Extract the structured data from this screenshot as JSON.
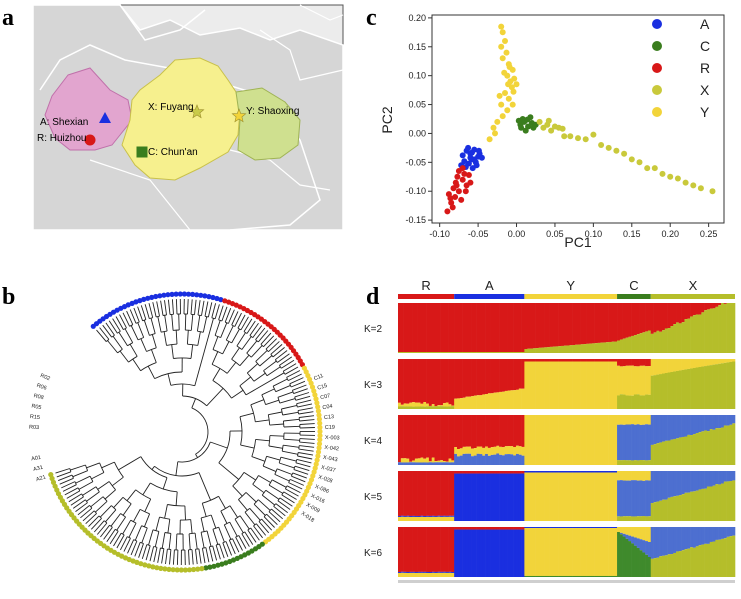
{
  "panels": {
    "a": {
      "letter": "a"
    },
    "b": {
      "letter": "b"
    },
    "c": {
      "letter": "c"
    },
    "d": {
      "letter": "d"
    }
  },
  "colors": {
    "A": "#1a2fe0",
    "C": "#3a7d1e",
    "R": "#d81818",
    "X": "#b5be2a",
    "Y": "#f2d43a",
    "K_blue": "#4d6fd0",
    "K_green": "#3f8a2c",
    "map_land": "#d8d8d8",
    "map_pink": "#e2a5cf",
    "map_yellow": "#f6f08e",
    "map_green": "#cfe08f"
  },
  "map": {
    "sites": [
      {
        "code": "A",
        "label": "A: Shexian",
        "marker": "triangle",
        "color": "#1a2fe0"
      },
      {
        "code": "R",
        "label": "R: Huizhou",
        "marker": "circle",
        "color": "#d81818"
      },
      {
        "code": "X",
        "label": "X: Fuyang",
        "marker": "star",
        "color": "#c9cc4a"
      },
      {
        "code": "Y",
        "label": "Y: Shaoxing",
        "marker": "star",
        "color": "#f2d43a"
      },
      {
        "code": "C",
        "label": "C: Chun'an",
        "marker": "square",
        "color": "#3a7d1e"
      }
    ]
  },
  "chart_data": [
    {
      "id": "pca",
      "type": "scatter",
      "xlabel": "PC1",
      "ylabel": "PC2",
      "xlim": [
        -0.11,
        0.27
      ],
      "ylim": [
        -0.155,
        0.205
      ],
      "xticks": [
        "-0.10",
        "-0.05",
        "0.00",
        "0.05",
        "0.10",
        "0.15",
        "0.20",
        "0.25"
      ],
      "xtick_values": [
        -0.1,
        -0.05,
        0.0,
        0.05,
        0.1,
        0.15,
        0.2,
        0.25
      ],
      "yticks": [
        "0.20",
        "0.15",
        "0.10",
        "0.05",
        "0.00",
        "-0.05",
        "-0.10",
        "-0.15"
      ],
      "ytick_values": [
        0.2,
        0.15,
        0.1,
        0.05,
        0.0,
        -0.05,
        -0.1,
        -0.15
      ],
      "legend_position": "top-right",
      "series": [
        {
          "name": "A",
          "color": "#1a2fe0",
          "points": [
            [
              -0.065,
              -0.03
            ],
            [
              -0.06,
              -0.035
            ],
            [
              -0.055,
              -0.028
            ],
            [
              -0.05,
              -0.04
            ],
            [
              -0.058,
              -0.045
            ],
            [
              -0.062,
              -0.052
            ],
            [
              -0.068,
              -0.048
            ],
            [
              -0.053,
              -0.05
            ],
            [
              -0.048,
              -0.035
            ],
            [
              -0.045,
              -0.042
            ],
            [
              -0.07,
              -0.038
            ],
            [
              -0.063,
              -0.025
            ],
            [
              -0.057,
              -0.06
            ],
            [
              -0.052,
              -0.055
            ],
            [
              -0.06,
              -0.042
            ],
            [
              -0.066,
              -0.058
            ],
            [
              -0.049,
              -0.03
            ],
            [
              -0.055,
              -0.045
            ],
            [
              -0.072,
              -0.055
            ],
            [
              -0.058,
              -0.033
            ]
          ]
        },
        {
          "name": "C",
          "color": "#3a7d1e",
          "points": [
            [
              0.005,
              0.015
            ],
            [
              0.01,
              0.02
            ],
            [
              0.015,
              0.012
            ],
            [
              0.008,
              0.025
            ],
            [
              0.02,
              0.018
            ],
            [
              0.012,
              0.005
            ],
            [
              0.003,
              0.022
            ],
            [
              0.018,
              0.028
            ],
            [
              0.022,
              0.01
            ],
            [
              0.006,
              0.01
            ],
            [
              0.014,
              0.024
            ],
            [
              0.025,
              0.015
            ]
          ]
        },
        {
          "name": "R",
          "color": "#d81818",
          "points": [
            [
              -0.085,
              -0.12
            ],
            [
              -0.08,
              -0.11
            ],
            [
              -0.075,
              -0.1
            ],
            [
              -0.078,
              -0.09
            ],
            [
              -0.07,
              -0.08
            ],
            [
              -0.082,
              -0.095
            ],
            [
              -0.088,
              -0.105
            ],
            [
              -0.072,
              -0.115
            ],
            [
              -0.065,
              -0.09
            ],
            [
              -0.068,
              -0.07
            ],
            [
              -0.075,
              -0.065
            ],
            [
              -0.06,
              -0.085
            ],
            [
              -0.083,
              -0.128
            ],
            [
              -0.09,
              -0.135
            ],
            [
              -0.077,
              -0.075
            ],
            [
              -0.066,
              -0.1
            ],
            [
              -0.086,
              -0.112
            ],
            [
              -0.07,
              -0.06
            ],
            [
              -0.062,
              -0.072
            ],
            [
              -0.079,
              -0.085
            ]
          ]
        },
        {
          "name": "X",
          "color": "#c9c93b",
          "points": [
            [
              0.03,
              0.02
            ],
            [
              0.04,
              0.015
            ],
            [
              0.05,
              0.012
            ],
            [
              0.06,
              0.008
            ],
            [
              0.045,
              0.005
            ],
            [
              0.055,
              0.01
            ],
            [
              0.035,
              0.01
            ],
            [
              0.07,
              -0.005
            ],
            [
              0.08,
              -0.008
            ],
            [
              0.09,
              -0.01
            ],
            [
              0.1,
              -0.002
            ],
            [
              0.11,
              -0.02
            ],
            [
              0.12,
              -0.025
            ],
            [
              0.13,
              -0.03
            ],
            [
              0.14,
              -0.035
            ],
            [
              0.15,
              -0.045
            ],
            [
              0.16,
              -0.05
            ],
            [
              0.17,
              -0.06
            ],
            [
              0.18,
              -0.06
            ],
            [
              0.19,
              -0.07
            ],
            [
              0.2,
              -0.075
            ],
            [
              0.21,
              -0.078
            ],
            [
              0.22,
              -0.085
            ],
            [
              0.23,
              -0.09
            ],
            [
              0.24,
              -0.095
            ],
            [
              0.255,
              -0.1
            ],
            [
              0.062,
              -0.005
            ],
            [
              0.042,
              0.022
            ]
          ]
        },
        {
          "name": "Y",
          "color": "#f2d43a",
          "points": [
            [
              -0.02,
              0.185
            ],
            [
              -0.018,
              0.175
            ],
            [
              -0.015,
              0.16
            ],
            [
              -0.02,
              0.15
            ],
            [
              -0.013,
              0.14
            ],
            [
              -0.018,
              0.13
            ],
            [
              -0.01,
              0.12
            ],
            [
              -0.005,
              0.11
            ],
            [
              -0.012,
              0.1
            ],
            [
              -0.008,
              0.09
            ],
            [
              -0.003,
              0.095
            ],
            [
              0.0,
              0.085
            ],
            [
              -0.006,
              0.08
            ],
            [
              -0.015,
              0.07
            ],
            [
              -0.01,
              0.06
            ],
            [
              -0.005,
              0.05
            ],
            [
              -0.012,
              0.04
            ],
            [
              -0.018,
              0.03
            ],
            [
              -0.02,
              0.05
            ],
            [
              -0.025,
              0.02
            ],
            [
              -0.03,
              0.01
            ],
            [
              -0.028,
              0.0
            ],
            [
              -0.035,
              -0.01
            ],
            [
              -0.022,
              0.065
            ],
            [
              -0.016,
              0.105
            ],
            [
              -0.004,
              0.072
            ],
            [
              -0.009,
              0.115
            ],
            [
              -0.011,
              0.085
            ]
          ]
        }
      ]
    },
    {
      "id": "structure",
      "type": "bar",
      "title": "",
      "group_order": [
        "R",
        "A",
        "Y",
        "C",
        "X"
      ],
      "group_counts": [
        20,
        25,
        33,
        12,
        30
      ],
      "group_colors": [
        "#d81818",
        "#1a2fe0",
        "#f2d43a",
        "#3a7d1e",
        "#b5be2a"
      ],
      "k_labels": [
        "K=2",
        "K=3",
        "K=4",
        "K=5",
        "K=6"
      ],
      "ancestry_colors": {
        "red": "#d81818",
        "blue": "#1a2fe0",
        "yellow": "#f2d43a",
        "steel": "#4d6fd0",
        "olive": "#b5be2a",
        "green": "#3f8a2c"
      }
    },
    {
      "id": "tree",
      "type": "dendrogram",
      "groups": [
        {
          "name": "A",
          "count": 34,
          "color": "#1a2fe0"
        },
        {
          "name": "R",
          "count": 26,
          "color": "#d81818"
        },
        {
          "name": "Y",
          "count": 48,
          "color": "#f2d43a"
        },
        {
          "name": "C",
          "count": 16,
          "color": "#3a7d1e"
        },
        {
          "name": "X",
          "count": 48,
          "color": "#b5be2a"
        }
      ],
      "visible_tip_labels": [
        "A21",
        "A31",
        "A01",
        "R03",
        "R15",
        "R05",
        "R08",
        "R06",
        "R02",
        "X-003",
        "X-042",
        "X-043",
        "X-037",
        "X-028",
        "X-086",
        "X-016",
        "X-009",
        "X-018",
        "C11",
        "C15",
        "C07",
        "C04",
        "C13",
        "C19"
      ]
    }
  ]
}
